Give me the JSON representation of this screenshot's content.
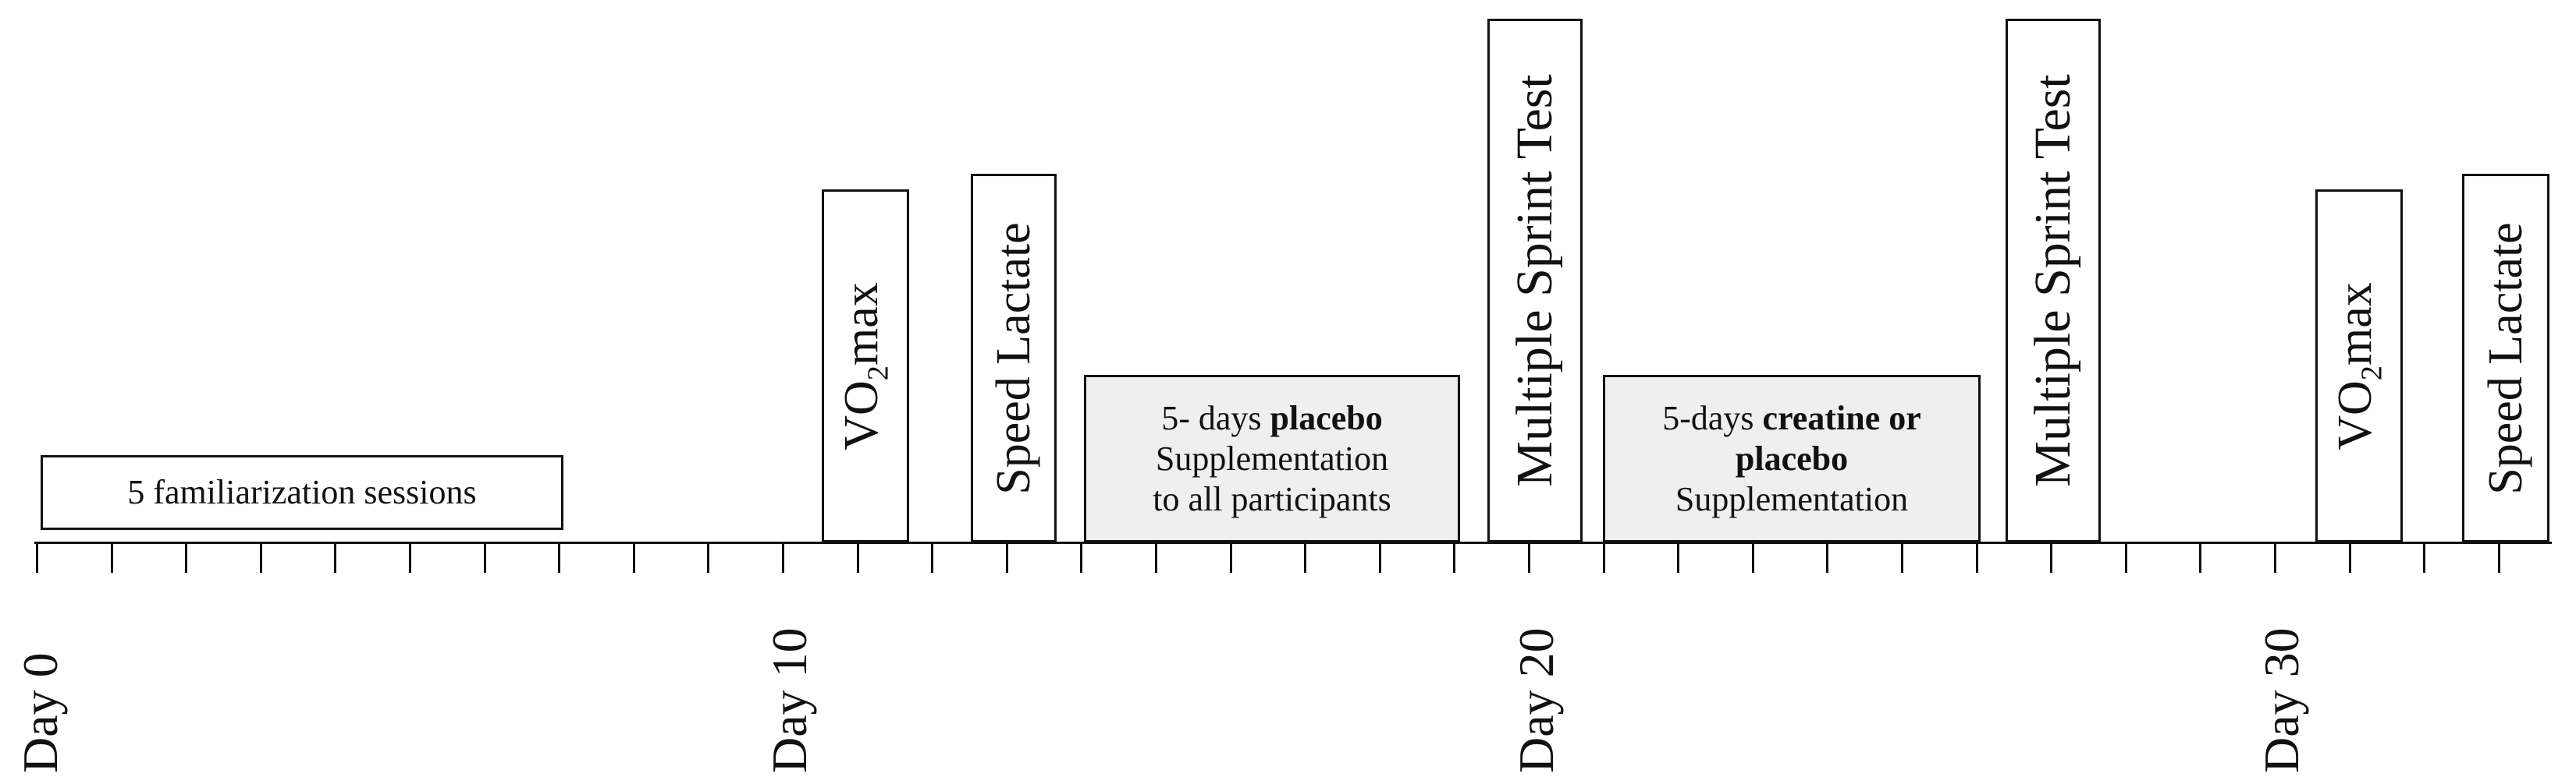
{
  "timeline": {
    "day_labels": [
      "Day 0",
      "Day 10",
      "Day 20",
      "Day 30"
    ],
    "tick_count": 34
  },
  "events": {
    "familiarization": {
      "label": "5 familiarization sessions"
    },
    "vo2max_1": {
      "label_pre": "VO",
      "label_sub": "2",
      "label_post": "max"
    },
    "speed_lactate_1": {
      "label": "Speed Lactate"
    },
    "placebo_phase": {
      "line1_pre": "5- days ",
      "line1_bold": "placebo",
      "line2": "Supplementation",
      "line3": "to all participants"
    },
    "sprint_test_1": {
      "label": "Multiple Sprint Test"
    },
    "creatine_phase": {
      "line1_pre": "5-days ",
      "line1_bold": "creatine or",
      "line2_bold": "placebo",
      "line3": "Supplementation"
    },
    "sprint_test_2": {
      "label": "Multiple Sprint Test"
    },
    "vo2max_2": {
      "label_pre": "VO",
      "label_sub": "2",
      "label_post": "max"
    },
    "speed_lactate_2": {
      "label": "Speed Lactate"
    }
  },
  "colors": {
    "stroke": "#111111",
    "shaded_box": "#efefef"
  }
}
